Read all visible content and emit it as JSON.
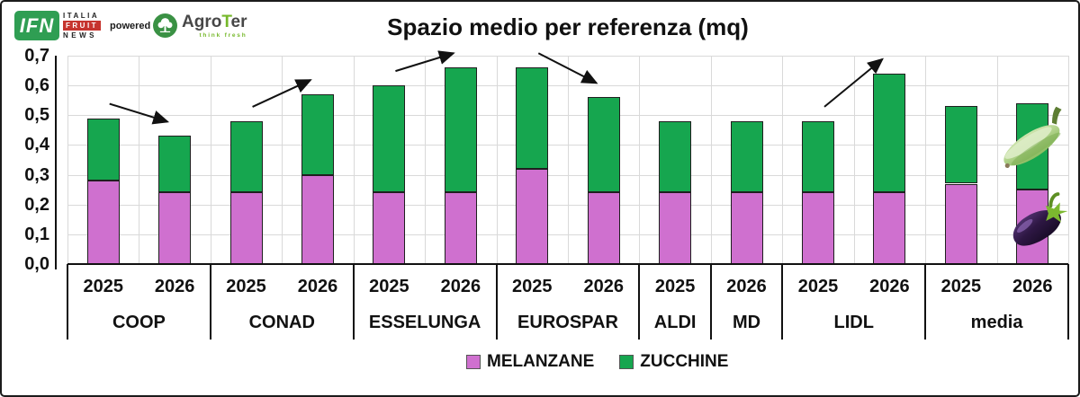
{
  "header": {
    "ifn_logo": {
      "abbr": "IFN",
      "line1": "ITALIA",
      "line2": "FRUIT",
      "line3": "NEWS"
    },
    "powered_by": "powered by",
    "agroter_logo": {
      "part1": "Agro",
      "part2": "T",
      "part3": "er",
      "tagline": "think fresh"
    }
  },
  "chart_data": {
    "type": "bar",
    "stacked": true,
    "title": "Spazio medio per referenza (mq)",
    "ylim": [
      0,
      0.7
    ],
    "ytick_labels": [
      "0,0",
      "0,1",
      "0,2",
      "0,3",
      "0,4",
      "0,5",
      "0,6",
      "0,7"
    ],
    "grid": true,
    "legend_position": "bottom",
    "series": [
      "MELANZANE",
      "ZUCCHINE"
    ],
    "series_colors": [
      "#cf70cf",
      "#16a64f"
    ],
    "style": {
      "bar_border": "#1f1f1f",
      "grid_color": "#d9d9d9",
      "axis_color": "#111111",
      "arrow_color": "#111111",
      "text_color": "#111111"
    },
    "groups": [
      {
        "label": "COOP",
        "trend": "down",
        "bars": [
          {
            "year": "2025",
            "values": [
              0.28,
              0.21
            ]
          },
          {
            "year": "2026",
            "values": [
              0.24,
              0.19
            ]
          }
        ]
      },
      {
        "label": "CONAD",
        "trend": "up",
        "bars": [
          {
            "year": "2025",
            "values": [
              0.24,
              0.24
            ]
          },
          {
            "year": "2026",
            "values": [
              0.3,
              0.27
            ]
          }
        ]
      },
      {
        "label": "ESSELUNGA",
        "trend": "up",
        "bars": [
          {
            "year": "2025",
            "values": [
              0.24,
              0.36
            ]
          },
          {
            "year": "2026",
            "values": [
              0.24,
              0.42
            ]
          }
        ]
      },
      {
        "label": "EUROSPAR",
        "trend": "down",
        "bars": [
          {
            "year": "2025",
            "values": [
              0.32,
              0.34
            ]
          },
          {
            "year": "2026",
            "values": [
              0.24,
              0.32
            ]
          }
        ]
      },
      {
        "label": "ALDI",
        "trend": null,
        "bars": [
          {
            "year": "2025",
            "values": [
              0.24,
              0.24
            ]
          }
        ]
      },
      {
        "label": "MD",
        "trend": null,
        "bars": [
          {
            "year": "2026",
            "values": [
              0.24,
              0.24
            ]
          }
        ]
      },
      {
        "label": "LIDL",
        "trend": "up",
        "bars": [
          {
            "year": "2025",
            "values": [
              0.24,
              0.24
            ]
          },
          {
            "year": "2026",
            "values": [
              0.24,
              0.4
            ]
          }
        ]
      },
      {
        "label": "media",
        "trend": null,
        "bars": [
          {
            "year": "2025",
            "values": [
              0.27,
              0.26
            ]
          },
          {
            "year": "2026",
            "values": [
              0.25,
              0.29
            ]
          }
        ]
      }
    ],
    "decorations": [
      "zucchini-illustration",
      "eggplant-illustration"
    ]
  }
}
